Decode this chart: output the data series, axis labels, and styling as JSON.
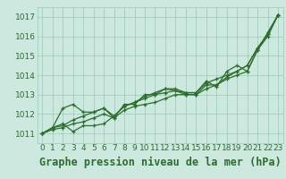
{
  "title": "Graphe pression niveau de la mer (hPa)",
  "bg_color": "#cce8df",
  "grid_color": "#9ecfbf",
  "line_color": "#2d6e2d",
  "xlim": [
    -0.5,
    23.5
  ],
  "ylim": [
    1010.5,
    1017.5
  ],
  "yticks": [
    1011,
    1012,
    1013,
    1014,
    1015,
    1016,
    1017
  ],
  "xticks": [
    0,
    1,
    2,
    3,
    4,
    5,
    6,
    7,
    8,
    9,
    10,
    11,
    12,
    13,
    14,
    15,
    16,
    17,
    18,
    19,
    20,
    21,
    22,
    23
  ],
  "series": [
    [
      1011.0,
      1011.2,
      1011.3,
      1011.5,
      1011.6,
      1011.8,
      1012.0,
      1011.8,
      1012.2,
      1012.4,
      1012.5,
      1012.6,
      1012.8,
      1013.0,
      1013.0,
      1013.0,
      1013.3,
      1013.5,
      1013.8,
      1014.0,
      1014.2,
      1015.3,
      1016.0,
      1017.1
    ],
    [
      1011.0,
      1011.3,
      1011.4,
      1011.7,
      1011.9,
      1012.1,
      1012.3,
      1011.9,
      1012.4,
      1012.6,
      1012.8,
      1013.0,
      1013.1,
      1013.2,
      1013.1,
      1013.1,
      1013.6,
      1013.8,
      1014.0,
      1014.2,
      1014.5,
      1015.4,
      1016.1,
      1017.1
    ],
    [
      1011.0,
      1011.3,
      1012.3,
      1012.5,
      1012.1,
      1012.1,
      1012.3,
      1011.8,
      1012.5,
      1012.5,
      1013.0,
      1013.0,
      1013.3,
      1013.2,
      1013.0,
      1013.0,
      1013.5,
      1013.5,
      1013.9,
      1014.2,
      1014.5,
      1015.4,
      1016.1,
      1017.1
    ],
    [
      1011.0,
      1011.3,
      1011.5,
      1011.1,
      1011.4,
      1011.4,
      1011.5,
      1011.9,
      1012.4,
      1012.6,
      1012.9,
      1013.1,
      1013.3,
      1013.3,
      1013.1,
      1013.1,
      1013.7,
      1013.4,
      1014.2,
      1014.5,
      1014.2,
      1015.3,
      1016.2,
      1017.1
    ]
  ],
  "tick_fontsize": 6.5,
  "xlabel_fontsize": 8.5
}
